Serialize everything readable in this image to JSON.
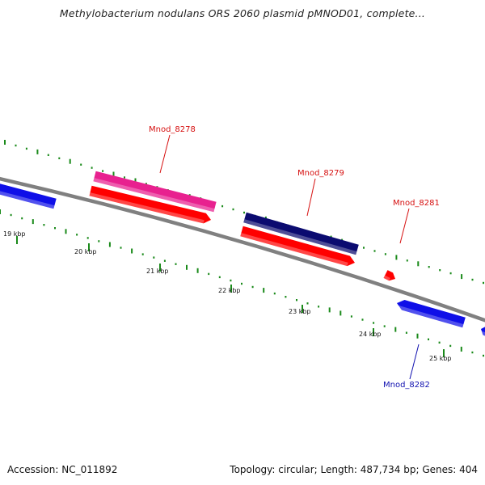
{
  "title": "Methylobacterium nodulans ORS 2060 plasmid pMNOD01, complete...",
  "footer": {
    "accession": "Accession: NC_011892",
    "info": "Topology: circular; Length: 487,734 bp; Genes: 404"
  },
  "scale": [
    "19 kbp",
    "20 kbp",
    "21 kbp",
    "22 kbp",
    "23 kbp",
    "24 kbp",
    "25 kbp"
  ],
  "genes": [
    {
      "label": "",
      "strand": "reverse",
      "track": "cds-reverse",
      "color": "#0f0fe8"
    },
    {
      "label": "Mnod_8278",
      "strand": "forward",
      "track": "gene",
      "color": "#e8218f",
      "label_color": "#d61010"
    },
    {
      "label": "",
      "strand": "forward",
      "track": "cds-forward",
      "color": "#ff0000"
    },
    {
      "label": "Mnod_8279",
      "strand": "forward",
      "track": "gene",
      "color": "#0b0b70",
      "label_color": "#d61010"
    },
    {
      "label": "",
      "strand": "forward",
      "track": "cds-forward",
      "color": "#ff0000"
    },
    {
      "label": "Mnod_8281",
      "strand": "forward",
      "track": "cds-forward",
      "color": "#ff0000",
      "label_color": "#d61010"
    },
    {
      "label": "Mnod_8282",
      "strand": "reverse",
      "track": "cds-reverse",
      "color": "#0f0fe8",
      "label_color": "#1010b0"
    },
    {
      "label": "",
      "strand": "reverse",
      "track": "cds-reverse",
      "color": "#0f0fe8"
    }
  ],
  "colors": {
    "backbone": "#808080",
    "gc_ticks": "#1a8a1a",
    "forward_cds": "#ff0000",
    "reverse_cds": "#0f0fe8",
    "gene_pink": "#e8218f",
    "gene_navy": "#0b0b70"
  }
}
